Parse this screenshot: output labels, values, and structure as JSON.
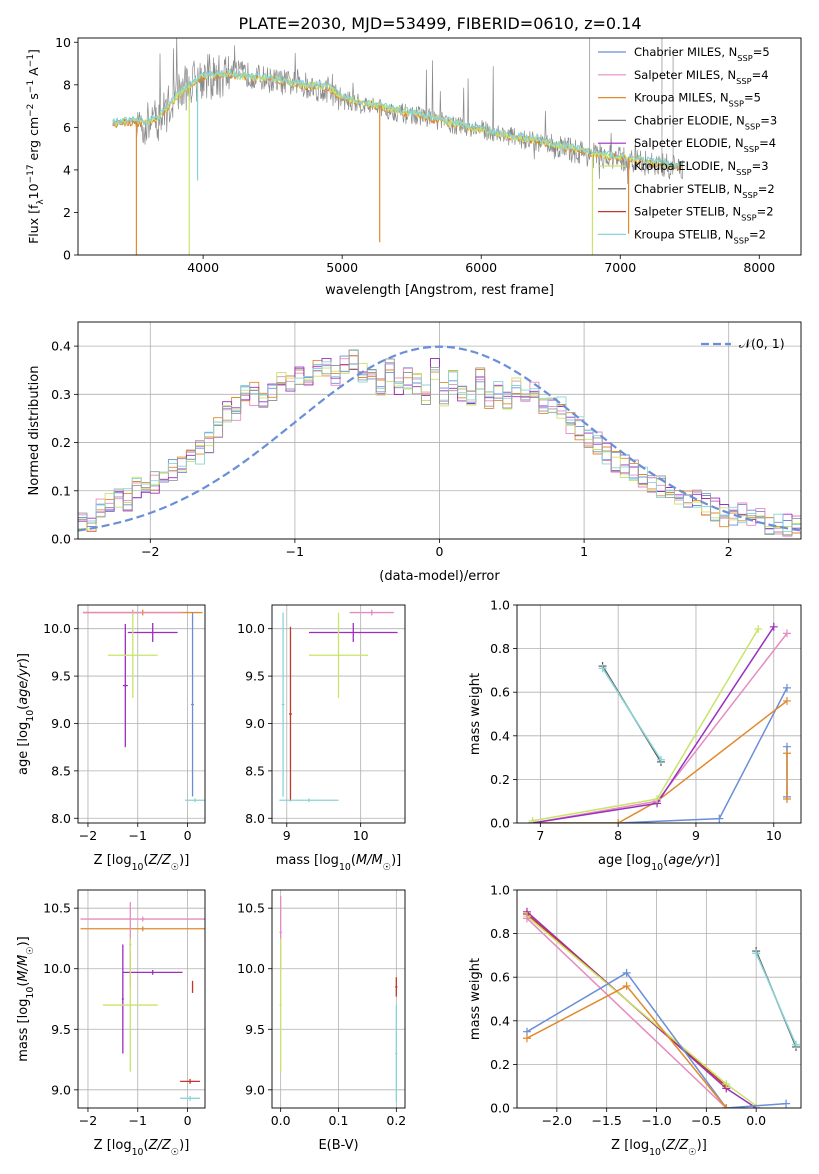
{
  "title": "PLATE=2030, MJD=53499, FIBERID=0610, z=0.14",
  "colors": {
    "chabrier_miles": "#6a8fd8",
    "salpeter_miles": "#e58bc0",
    "kroupa_miles": "#e08a2e",
    "chabrier_elodie": "#7f7f7f",
    "salpeter_elodie": "#9b2fc0",
    "kroupa_elodie": "#c8e46a",
    "chabrier_stelib": "#555555",
    "salpeter_stelib": "#c0392b",
    "kroupa_stelib": "#88d4d8",
    "normal": "#6a8fd8"
  },
  "chart_data": [
    {
      "id": "spectrum",
      "type": "line",
      "xlabel": "wavelength [Angstrom, rest frame]",
      "ylabel": "Flux [f_λ10^-17 erg cm^-2 s^-1 A^-1]",
      "xlim": [
        3100,
        8300
      ],
      "ylim": [
        0,
        10.2
      ],
      "xticks": [
        4000,
        5000,
        6000,
        7000,
        8000
      ],
      "yticks": [
        0,
        2,
        4,
        6,
        8,
        10
      ],
      "legend_position": "top-right",
      "legend": [
        "Chabrier MILES, N_SSP=5",
        "Salpeter MILES, N_SSP=4",
        "Kroupa MILES, N_SSP=5",
        "Chabrier ELODIE, N_SSP=3",
        "Salpeter ELODIE, N_SSP=4",
        "Kroupa ELODIE, N_SSP=3",
        "Chabrier STELIB, N_SSP=2",
        "Salpeter STELIB, N_SSP=2",
        "Kroupa STELIB, N_SSP=2"
      ],
      "data_envelope": {
        "x": [
          3350,
          3500,
          3600,
          3700,
          3800,
          3900,
          4000,
          4100,
          4200,
          4300,
          4500,
          4700,
          4900,
          5000,
          5200,
          5400,
          5600,
          5800,
          6000,
          6200,
          6400,
          6600,
          6800,
          7000,
          7200,
          7400
        ],
        "y": [
          6.2,
          6.3,
          6.1,
          6.5,
          7.5,
          8.0,
          8.4,
          8.3,
          8.6,
          8.5,
          8.2,
          8.0,
          7.7,
          7.3,
          7.0,
          6.7,
          6.5,
          6.1,
          5.9,
          5.6,
          5.3,
          5.0,
          4.7,
          4.5,
          4.3,
          4.1
        ]
      },
      "model_envelope": {
        "x": [
          3350,
          3500,
          3600,
          3700,
          3800,
          3900,
          4000,
          4100,
          4200,
          4300,
          4500,
          4700,
          4900,
          5000,
          5200,
          5400,
          5600,
          5800,
          6000,
          6200,
          6400,
          6600,
          6800,
          7000,
          7200,
          7400
        ],
        "y": [
          6.2,
          6.3,
          6.2,
          6.6,
          7.4,
          8.0,
          8.4,
          8.5,
          8.5,
          8.4,
          8.3,
          8.0,
          7.9,
          7.4,
          7.1,
          6.8,
          6.5,
          6.2,
          5.9,
          5.6,
          5.4,
          5.1,
          4.8,
          4.6,
          4.4,
          4.2
        ]
      }
    },
    {
      "id": "residuals",
      "type": "line",
      "xlabel": "(data-model)/error",
      "ylabel": "Normed distribution",
      "xlim": [
        -2.5,
        2.5
      ],
      "ylim": [
        0,
        0.45
      ],
      "xticks": [
        -2,
        -1,
        0,
        1,
        2
      ],
      "yticks": [
        0.0,
        0.1,
        0.2,
        0.3,
        0.4
      ],
      "legend_position": "top-right",
      "legend": [
        "𝒩(0, 1)"
      ],
      "bin_width": 0.1,
      "bins_start": -2.5,
      "histogram": [
        0.03,
        0.04,
        0.06,
        0.07,
        0.09,
        0.08,
        0.11,
        0.1,
        0.12,
        0.14,
        0.14,
        0.16,
        0.17,
        0.18,
        0.2,
        0.23,
        0.26,
        0.27,
        0.3,
        0.3,
        0.28,
        0.31,
        0.33,
        0.32,
        0.34,
        0.32,
        0.35,
        0.36,
        0.34,
        0.36,
        0.37,
        0.35,
        0.33,
        0.32,
        0.35,
        0.31,
        0.33,
        0.32,
        0.3,
        0.35,
        0.3,
        0.33,
        0.31,
        0.3,
        0.33,
        0.29,
        0.31,
        0.29,
        0.32,
        0.3,
        0.31,
        0.28,
        0.28,
        0.27,
        0.24,
        0.23,
        0.21,
        0.2,
        0.18,
        0.16,
        0.15,
        0.14,
        0.13,
        0.12,
        0.11,
        0.1,
        0.09,
        0.08,
        0.08,
        0.07,
        0.06,
        0.05,
        0.05,
        0.05,
        0.04,
        0.04,
        0.03,
        0.03,
        0.03,
        0.03
      ]
    },
    {
      "id": "age-vs-Z",
      "type": "scatter",
      "xlabel": "Z [log10(Z/Z☉)]",
      "ylabel": "age [log10(age/yr)]",
      "xlim": [
        -2.2,
        0.35
      ],
      "ylim": [
        7.95,
        10.25
      ],
      "xticks": [
        -2,
        -1,
        0
      ],
      "yticks": [
        8.0,
        8.5,
        9.0,
        9.5,
        10.0
      ],
      "points": [
        {
          "series": "kroupa_miles",
          "x": -0.9,
          "y": 10.17,
          "xerr": 1.2,
          "yerr": 0.03
        },
        {
          "series": "salpeter_miles",
          "x": -1.1,
          "y": 10.17,
          "xerr": 1.0,
          "yerr": 0.03
        },
        {
          "series": "salpeter_elodie",
          "x": -0.7,
          "y": 9.96,
          "xerr": 0.5,
          "yerr": 0.1
        },
        {
          "series": "salpeter_elodie",
          "x": -1.25,
          "y": 9.4,
          "xerr": 0.05,
          "yerr": 0.65
        },
        {
          "series": "kroupa_elodie",
          "x": -1.1,
          "y": 9.72,
          "xerr": 0.5,
          "yerr": 0.45
        },
        {
          "series": "chabrier_miles",
          "x": 0.1,
          "y": 9.2,
          "xerr": 0.03,
          "yerr": 0.97
        },
        {
          "series": "kroupa_stelib",
          "x": 0.15,
          "y": 8.19,
          "xerr": 0.2,
          "yerr": 0.02
        }
      ]
    },
    {
      "id": "age-vs-mass",
      "type": "scatter",
      "xlabel": "mass [log10(M/M☉)]",
      "ylabel": "",
      "xlim": [
        8.8,
        10.6
      ],
      "ylim": [
        7.95,
        10.25
      ],
      "xticks": [
        9,
        10
      ],
      "yticks": [
        8.0,
        8.5,
        9.0,
        9.5,
        10.0
      ],
      "points": [
        {
          "series": "salpeter_miles",
          "x": 10.15,
          "y": 10.17,
          "xerr": 0.3,
          "yerr": 0.03
        },
        {
          "series": "salpeter_elodie",
          "x": 9.9,
          "y": 9.96,
          "xerr": 0.6,
          "yerr": 0.1
        },
        {
          "series": "kroupa_elodie",
          "x": 9.7,
          "y": 9.72,
          "xerr": 0.4,
          "yerr": 0.45
        },
        {
          "series": "salpeter_stelib",
          "x": 9.05,
          "y": 9.1,
          "xerr": 0.02,
          "yerr": 0.92
        },
        {
          "series": "kroupa_stelib",
          "x": 9.3,
          "y": 8.19,
          "xerr": 0.4,
          "yerr": 0.02
        },
        {
          "series": "kroupa_stelib",
          "x": 8.95,
          "y": 9.2,
          "xerr": 0.02,
          "yerr": 0.97
        }
      ]
    },
    {
      "id": "weight-vs-age",
      "type": "line",
      "xlabel": "age [log10(age/yr)]",
      "ylabel": "mass weight",
      "xlim": [
        6.7,
        10.35
      ],
      "ylim": [
        0,
        1.0
      ],
      "xticks": [
        7,
        8,
        9,
        10
      ],
      "yticks": [
        0.0,
        0.2,
        0.4,
        0.6,
        0.8,
        1.0
      ],
      "series": [
        {
          "key": "chabrier_miles",
          "x": [
            6.9,
            8.0,
            9.3,
            10.17
          ],
          "y": [
            0.0,
            0.0,
            0.02,
            0.62
          ]
        },
        {
          "key": "kroupa_miles",
          "x": [
            6.9,
            8.0,
            8.5,
            10.17
          ],
          "y": [
            0.0,
            0.0,
            0.1,
            0.56
          ]
        },
        {
          "key": "salpeter_miles",
          "x": [
            6.9,
            8.5,
            10.17
          ],
          "y": [
            0.0,
            0.1,
            0.87
          ]
        },
        {
          "key": "salpeter_elodie",
          "x": [
            6.9,
            8.5,
            10.0
          ],
          "y": [
            0.0,
            0.09,
            0.9
          ]
        },
        {
          "key": "kroupa_elodie",
          "x": [
            6.9,
            8.5,
            9.8
          ],
          "y": [
            0.01,
            0.11,
            0.89
          ]
        },
        {
          "key": "chabrier_stelib",
          "x": [
            7.8,
            8.55
          ],
          "y": [
            0.72,
            0.28
          ]
        },
        {
          "key": "kroupa_stelib",
          "x": [
            7.8,
            8.55
          ],
          "y": [
            0.71,
            0.29
          ]
        },
        {
          "key": "chabrier_miles",
          "x": [
            10.17,
            10.17
          ],
          "y": [
            0.35,
            0.12
          ]
        },
        {
          "key": "kroupa_miles",
          "x": [
            10.17,
            10.17
          ],
          "y": [
            0.32,
            0.11
          ]
        }
      ]
    },
    {
      "id": "mass-vs-Z",
      "type": "scatter",
      "xlabel": "Z [log10(Z/Z☉)]",
      "ylabel": "mass [log10(M/M☉)]",
      "xlim": [
        -2.2,
        0.35
      ],
      "ylim": [
        8.85,
        10.65
      ],
      "xticks": [
        -2,
        -1,
        0
      ],
      "yticks": [
        9.0,
        9.5,
        10.0,
        10.5
      ],
      "points": [
        {
          "series": "salpeter_miles",
          "x": -0.9,
          "y": 10.41,
          "xerr": 1.25,
          "yerr": 0.02
        },
        {
          "series": "kroupa_miles",
          "x": -0.9,
          "y": 10.33,
          "xerr": 1.25,
          "yerr": 0.02
        },
        {
          "series": "salpeter_miles",
          "x": -1.15,
          "y": 10.2,
          "xerr": 0.02,
          "yerr": 0.35
        },
        {
          "series": "salpeter_elodie",
          "x": -0.7,
          "y": 9.97,
          "xerr": 0.6,
          "yerr": 0.02
        },
        {
          "series": "salpeter_elodie",
          "x": -1.3,
          "y": 9.75,
          "xerr": 0.02,
          "yerr": 0.45
        },
        {
          "series": "kroupa_elodie",
          "x": -1.15,
          "y": 9.7,
          "xerr": 0.55,
          "yerr": 0.55
        },
        {
          "series": "salpeter_stelib",
          "x": 0.05,
          "y": 9.07,
          "xerr": 0.2,
          "yerr": 0.02
        },
        {
          "series": "kroupa_stelib",
          "x": 0.05,
          "y": 8.93,
          "xerr": 0.2,
          "yerr": 0.02
        },
        {
          "series": "salpeter_stelib",
          "x": 0.1,
          "y": 9.85,
          "xerr": 0.01,
          "yerr": 0.05
        }
      ]
    },
    {
      "id": "mass-vs-ebv",
      "type": "scatter",
      "xlabel": "E(B-V)",
      "ylabel": "",
      "xlim": [
        -0.015,
        0.215
      ],
      "ylim": [
        8.85,
        10.65
      ],
      "xticks": [
        0.0,
        0.1,
        0.2
      ],
      "yticks": [
        9.0,
        9.5,
        10.0,
        10.5
      ],
      "points": [
        {
          "series": "salpeter_miles",
          "x": 0.0,
          "y": 10.3,
          "xerr": 0.002,
          "yerr": 0.3
        },
        {
          "series": "kroupa_elodie",
          "x": 0.0,
          "y": 9.7,
          "xerr": 0.002,
          "yerr": 0.55
        },
        {
          "series": "salpeter_stelib",
          "x": 0.2,
          "y": 9.85,
          "xerr": 0.002,
          "yerr": 0.08
        },
        {
          "series": "kroupa_stelib",
          "x": 0.2,
          "y": 9.3,
          "xerr": 0.002,
          "yerr": 0.4
        }
      ]
    },
    {
      "id": "weight-vs-Z",
      "type": "line",
      "xlabel": "Z [log10(Z/Z☉)]",
      "ylabel": "mass weight",
      "xlim": [
        -2.4,
        0.45
      ],
      "ylim": [
        0,
        1.0
      ],
      "xticks": [
        -2.0,
        -1.5,
        -1.0,
        -0.5,
        0.0
      ],
      "yticks": [
        0.0,
        0.2,
        0.4,
        0.6,
        0.8,
        1.0
      ],
      "series": [
        {
          "key": "salpeter_elodie",
          "x": [
            -2.3,
            -0.3,
            0.0
          ],
          "y": [
            0.9,
            0.09,
            0.0
          ]
        },
        {
          "key": "salpeter_stelib",
          "x": [
            -2.3,
            -0.3
          ],
          "y": [
            0.89,
            0.1
          ]
        },
        {
          "key": "kroupa_elodie",
          "x": [
            -2.3,
            -0.3,
            0.0
          ],
          "y": [
            0.88,
            0.11,
            0.01
          ]
        },
        {
          "key": "salpeter_miles",
          "x": [
            -2.3,
            -0.3
          ],
          "y": [
            0.87,
            0.0
          ]
        },
        {
          "key": "chabrier_miles",
          "x": [
            -2.3,
            -1.3,
            -0.3,
            0.3
          ],
          "y": [
            0.35,
            0.62,
            0.0,
            0.02
          ]
        },
        {
          "key": "kroupa_miles",
          "x": [
            -2.3,
            -1.3,
            -0.3
          ],
          "y": [
            0.32,
            0.56,
            0.0
          ]
        },
        {
          "key": "chabrier_stelib",
          "x": [
            0.0,
            0.4
          ],
          "y": [
            0.72,
            0.28
          ]
        },
        {
          "key": "kroupa_stelib",
          "x": [
            0.0,
            0.4
          ],
          "y": [
            0.71,
            0.29
          ]
        }
      ]
    }
  ]
}
